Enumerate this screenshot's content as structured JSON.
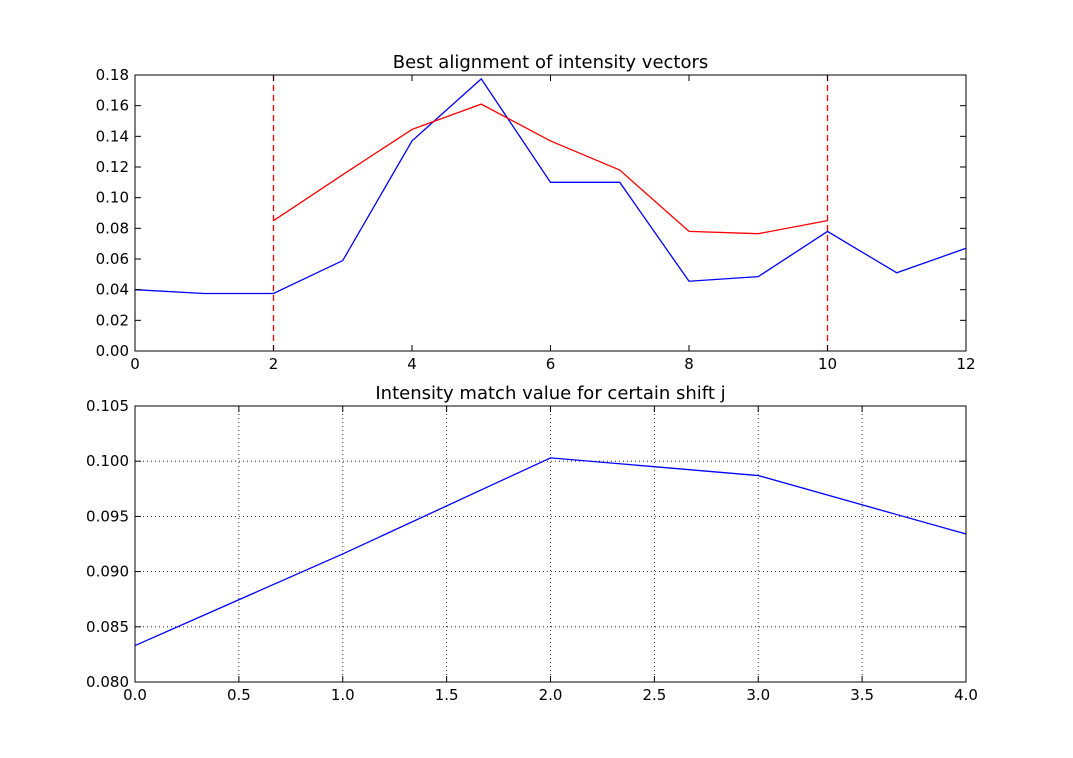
{
  "chart_data": [
    {
      "type": "line",
      "title": "Best alignment of intensity vectors",
      "xlabel": "",
      "ylabel": "",
      "xlim": [
        0,
        12
      ],
      "ylim": [
        0,
        0.18
      ],
      "xticks": [
        0,
        2,
        4,
        6,
        8,
        10,
        12
      ],
      "xtick_labels": [
        "0",
        "2",
        "4",
        "6",
        "8",
        "10",
        "12"
      ],
      "yticks": [
        0,
        0.02,
        0.04,
        0.06,
        0.08,
        0.1,
        0.12,
        0.14,
        0.16,
        0.18
      ],
      "ytick_labels": [
        "0.00",
        "0.02",
        "0.04",
        "0.06",
        "0.08",
        "0.10",
        "0.12",
        "0.14",
        "0.16",
        "0.18"
      ],
      "grid": false,
      "series": [
        {
          "color": "#0000ff",
          "style": "solid",
          "x": [
            0,
            1,
            2,
            3,
            4,
            5,
            6,
            7,
            8,
            9,
            10,
            11,
            12
          ],
          "values": [
            0.04,
            0.0375,
            0.0375,
            0.059,
            0.137,
            0.1775,
            0.11,
            0.11,
            0.0455,
            0.0485,
            0.078,
            0.051,
            0.067
          ]
        },
        {
          "color": "#ff0000",
          "style": "solid",
          "x": [
            2,
            3,
            4,
            5,
            6,
            7,
            8,
            9,
            10
          ],
          "values": [
            0.085,
            0.115,
            0.1445,
            0.161,
            0.137,
            0.118,
            0.078,
            0.0765,
            0.085
          ]
        }
      ],
      "vlines": [
        {
          "x": 2,
          "color": "#ff0000",
          "style": "dashed"
        },
        {
          "x": 10,
          "color": "#ff0000",
          "style": "dashed"
        }
      ]
    },
    {
      "type": "line",
      "title": "Intensity match value for certain shift j",
      "xlabel": "",
      "ylabel": "",
      "xlim": [
        0,
        4
      ],
      "ylim": [
        0.08,
        0.105
      ],
      "xticks": [
        0,
        0.5,
        1,
        1.5,
        2,
        2.5,
        3,
        3.5,
        4
      ],
      "xtick_labels": [
        "0.0",
        "0.5",
        "1.0",
        "1.5",
        "2.0",
        "2.5",
        "3.0",
        "3.5",
        "4.0"
      ],
      "yticks": [
        0.08,
        0.085,
        0.09,
        0.095,
        0.1,
        0.105
      ],
      "ytick_labels": [
        "0.080",
        "0.085",
        "0.090",
        "0.095",
        "0.100",
        "0.105"
      ],
      "grid": true,
      "series": [
        {
          "color": "#0000ff",
          "style": "solid",
          "x": [
            0,
            1,
            2,
            3,
            4
          ],
          "values": [
            0.0833,
            0.0916,
            0.1003,
            0.0987,
            0.0934
          ]
        }
      ],
      "vlines": []
    }
  ]
}
